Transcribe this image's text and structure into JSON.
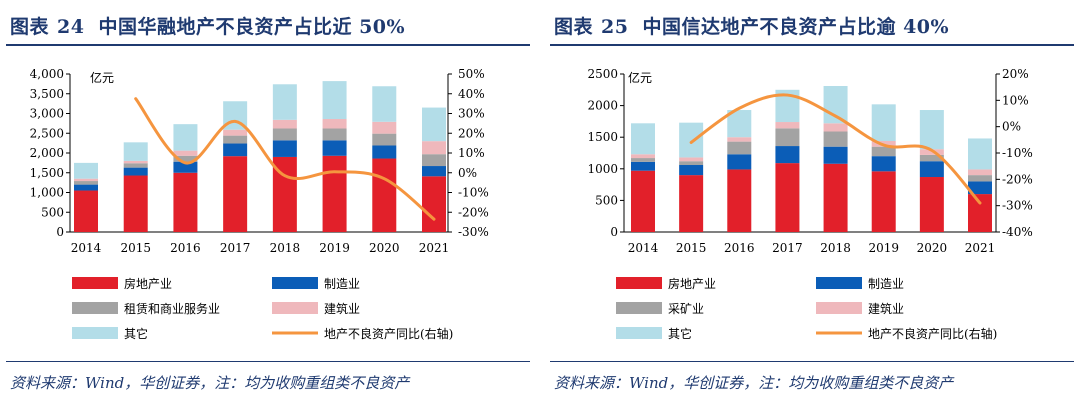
{
  "colors": {
    "title": "#1f3a70",
    "series": [
      "#e2202a",
      "#0b5db7",
      "#a3a3a3",
      "#efb8bc",
      "#b3dde8"
    ],
    "line": "#f5953f"
  },
  "source_text": "资料来源：Wind，华创证券，注：均为收购重组类不良资产",
  "chart_data": [
    {
      "type": "bar",
      "stacked": true,
      "figure_label": "图表",
      "figure_number": "24",
      "title": "中国华融地产不良资产占比近 50%",
      "ylabel": "亿元",
      "categories": [
        "2014",
        "2015",
        "2016",
        "2017",
        "2018",
        "2019",
        "2020",
        "2021"
      ],
      "ylim": [
        0,
        4000
      ],
      "yticks": [
        "0",
        "500",
        "1,000",
        "1,500",
        "2,000",
        "2,500",
        "3,000",
        "3,500",
        "4,000"
      ],
      "y2lim": [
        -30,
        50
      ],
      "y2ticks": [
        "-30%",
        "-20%",
        "-10%",
        "0%",
        "10%",
        "20%",
        "30%",
        "40%",
        "50%"
      ],
      "series": [
        {
          "name": "房地产业",
          "values": [
            1050,
            1430,
            1500,
            1920,
            1900,
            1930,
            1860,
            1410
          ]
        },
        {
          "name": "制造业",
          "values": [
            150,
            200,
            280,
            320,
            420,
            390,
            330,
            260
          ]
        },
        {
          "name": "租赁和商业服务业",
          "values": [
            90,
            110,
            150,
            200,
            300,
            300,
            300,
            300
          ]
        },
        {
          "name": "建筑业",
          "values": [
            60,
            60,
            130,
            150,
            220,
            240,
            300,
            330
          ]
        },
        {
          "name": "其它",
          "values": [
            400,
            470,
            670,
            720,
            900,
            960,
            900,
            850
          ]
        }
      ],
      "line": {
        "name": "地产不良资产同比(右轴)",
        "values": [
          null,
          37.5,
          5,
          26,
          -1.5,
          0.5,
          -3,
          -23.5
        ]
      }
    },
    {
      "type": "bar",
      "stacked": true,
      "figure_label": "图表",
      "figure_number": "25",
      "title": "中国信达地产不良资产占比逾 40%",
      "ylabel": "亿元",
      "categories": [
        "2014",
        "2015",
        "2016",
        "2017",
        "2018",
        "2019",
        "2020",
        "2021"
      ],
      "ylim": [
        0,
        2500
      ],
      "yticks": [
        "0",
        "500",
        "1000",
        "1500",
        "2000",
        "2500"
      ],
      "y2lim": [
        -40,
        20
      ],
      "y2ticks": [
        "-40%",
        "-30%",
        "-20%",
        "-10%",
        "0%",
        "10%",
        "20%"
      ],
      "series": [
        {
          "name": "房地产业",
          "values": [
            970,
            900,
            990,
            1090,
            1080,
            960,
            870,
            600
          ]
        },
        {
          "name": "制造业",
          "values": [
            140,
            160,
            240,
            270,
            270,
            240,
            250,
            200
          ]
        },
        {
          "name": "采矿业",
          "values": [
            60,
            60,
            200,
            280,
            240,
            150,
            100,
            100
          ]
        },
        {
          "name": "建筑业",
          "values": [
            60,
            60,
            70,
            100,
            130,
            90,
            90,
            90
          ]
        },
        {
          "name": "其它",
          "values": [
            490,
            550,
            430,
            510,
            590,
            580,
            620,
            490
          ]
        }
      ],
      "line": {
        "name": "地产不良资产同比(右轴)",
        "values": [
          null,
          -6,
          7,
          12,
          4,
          -7,
          -9,
          -29
        ]
      }
    }
  ]
}
